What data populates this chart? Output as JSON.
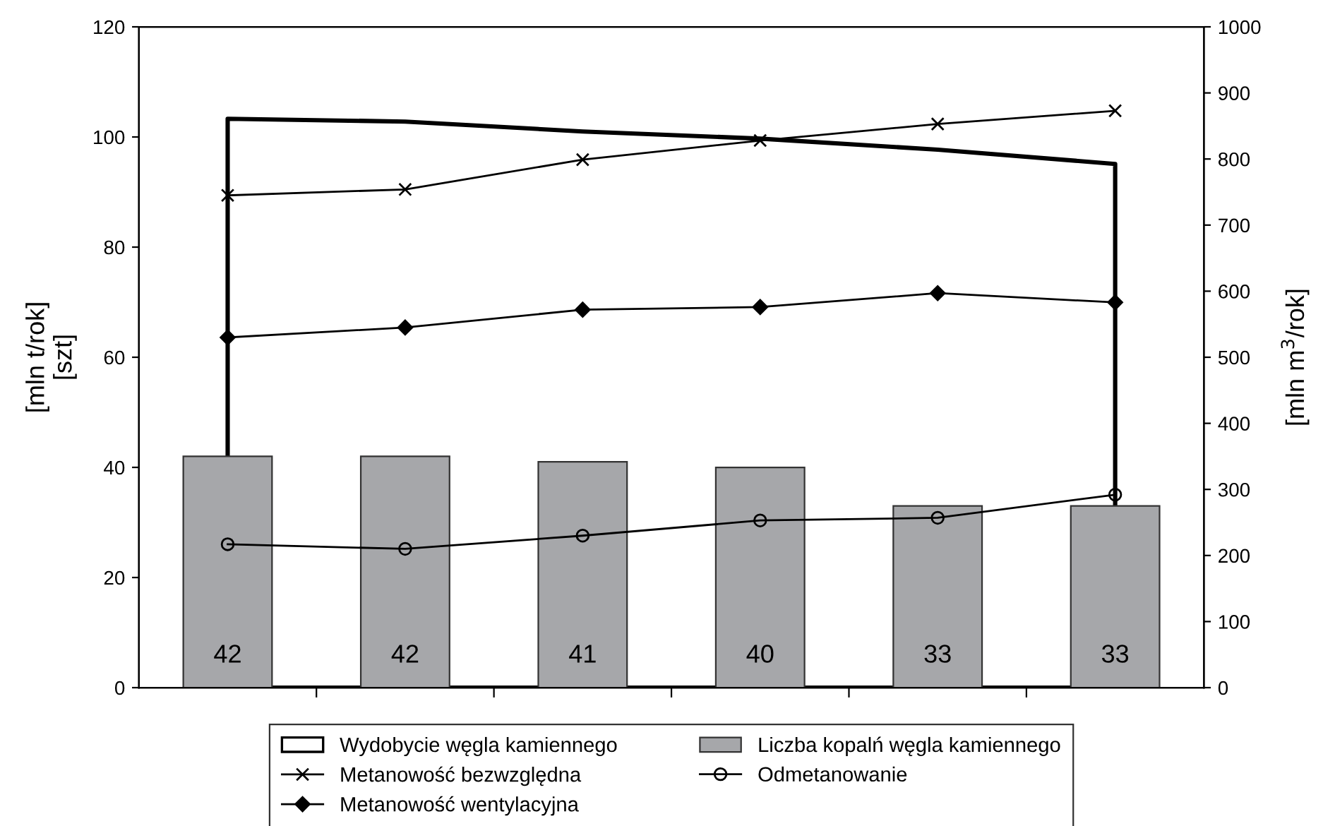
{
  "chart_data": {
    "type": "bar",
    "categories": [
      null,
      null,
      null,
      null,
      null,
      null
    ],
    "ylabel": "[mln t/rok]\n[szt]",
    "y2label": "[mln m$^{3}$/rok]",
    "ylim": [
      0,
      120
    ],
    "yticks": [
      0,
      20,
      40,
      60,
      80,
      100,
      120
    ],
    "y2lim": [
      0,
      1000
    ],
    "y2ticks": [
      0,
      100,
      200,
      300,
      400,
      500,
      600,
      700,
      800,
      900,
      1000
    ],
    "grid": false,
    "legend": "bottom",
    "line_style": "solid",
    "series": [
      {
        "name": "Wydobycie węgla kamiennego",
        "type": "area",
        "color": "#000000",
        "values": [
          103.3,
          102.8,
          101.0,
          99.7,
          97.7,
          95.1
        ]
      },
      {
        "name": "Liczba kopalń węgla kamiennego",
        "color": "#a6a7aa",
        "values": [
          42,
          42,
          41,
          40,
          33,
          33
        ],
        "value_labels": [
          "42",
          "42",
          "41",
          "40",
          "33",
          "33"
        ]
      },
      {
        "name": "Metanowość bezwzględna",
        "type": "line",
        "axis": "y2",
        "marker": "cross",
        "color": "#000000",
        "values": [
          745,
          754,
          799,
          828,
          853,
          873
        ]
      },
      {
        "name": "Odmetanowanie",
        "type": "line",
        "axis": "y2",
        "marker": "circle",
        "color": "#000000",
        "values": [
          217,
          210,
          230,
          253,
          257,
          292
        ]
      },
      {
        "name": "Metanowość wentylacyjna",
        "type": "line",
        "axis": "y2",
        "marker": "diamond",
        "color": "#000000",
        "values": [
          530,
          545,
          572,
          576,
          597,
          583
        ]
      }
    ]
  }
}
